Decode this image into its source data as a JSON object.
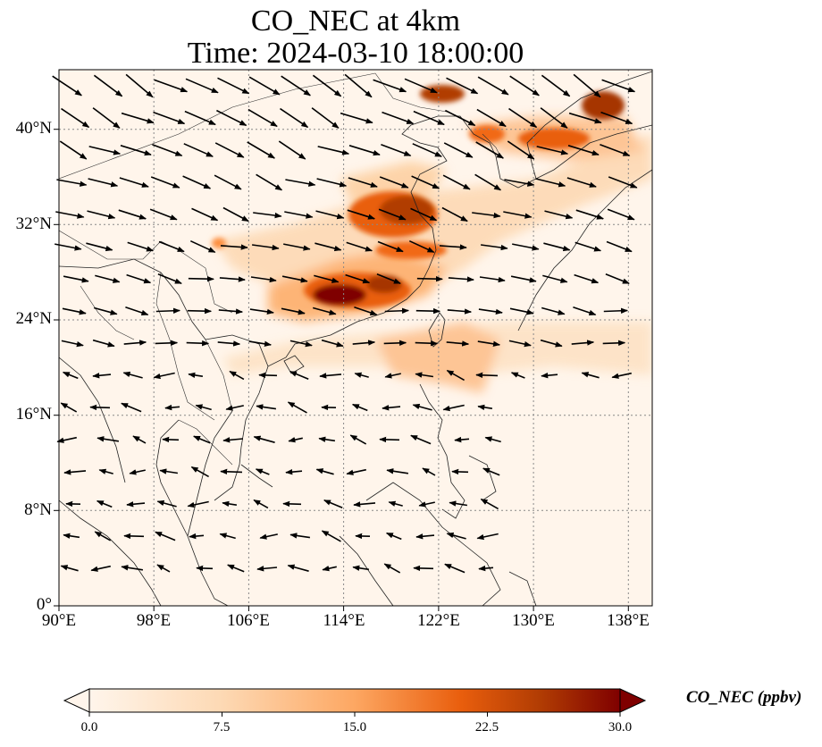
{
  "title": {
    "line1": "CO_NEC at 4km",
    "line2": "Time: 2024-03-10 18:00:00"
  },
  "map": {
    "lon_range": [
      90,
      140
    ],
    "lat_range": [
      0,
      45
    ],
    "lat_ticks": [
      "0°",
      "8°N",
      "16°N",
      "24°N",
      "32°N",
      "40°N"
    ],
    "lon_ticks": [
      "90°E",
      "98°E",
      "106°E",
      "114°E",
      "122°E",
      "130°E",
      "138°E"
    ],
    "gridlines": true,
    "features": [
      "coastlines",
      "country borders",
      "wind vectors"
    ]
  },
  "colorbar": {
    "label": "CO_NEC (ppbv)",
    "ticks": [
      "0.0",
      "7.5",
      "15.0",
      "22.5",
      "30.0"
    ],
    "range": [
      0,
      30
    ],
    "extend": "both",
    "colors": [
      "#fff5eb",
      "#fdd9b4",
      "#fda762",
      "#e95e0d",
      "#b13c03",
      "#7f0000"
    ]
  }
}
